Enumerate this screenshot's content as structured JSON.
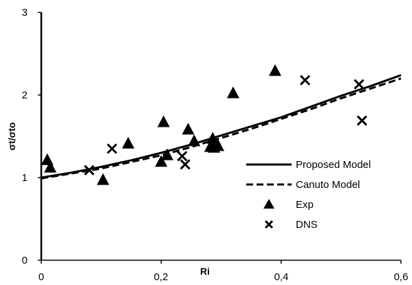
{
  "chart_data": {
    "type": "scatter",
    "xlabel": "Ri",
    "ylabel": "σt/σto",
    "xlim": [
      0,
      0.6
    ],
    "ylim": [
      0,
      3
    ],
    "x_ticks": [
      "0",
      "0,2",
      "0,4",
      "0,6"
    ],
    "y_ticks": [
      "0",
      "1",
      "2",
      "3"
    ],
    "grid": false,
    "legend_position": "right",
    "series": [
      {
        "name": "Proposed Model",
        "style": "solid-line",
        "color": "#000000",
        "points": [
          [
            0,
            1.0
          ],
          [
            0.05,
            1.06
          ],
          [
            0.1,
            1.13
          ],
          [
            0.15,
            1.21
          ],
          [
            0.2,
            1.3
          ],
          [
            0.25,
            1.4
          ],
          [
            0.3,
            1.51
          ],
          [
            0.35,
            1.62
          ],
          [
            0.4,
            1.73
          ],
          [
            0.45,
            1.86
          ],
          [
            0.5,
            1.99
          ],
          [
            0.55,
            2.11
          ],
          [
            0.6,
            2.24
          ]
        ]
      },
      {
        "name": "Canuto Model",
        "style": "dashed-line",
        "color": "#000000",
        "points": [
          [
            0,
            0.99
          ],
          [
            0.05,
            1.05
          ],
          [
            0.1,
            1.11
          ],
          [
            0.15,
            1.19
          ],
          [
            0.2,
            1.27
          ],
          [
            0.25,
            1.37
          ],
          [
            0.3,
            1.48
          ],
          [
            0.35,
            1.59
          ],
          [
            0.4,
            1.71
          ],
          [
            0.45,
            1.83
          ],
          [
            0.5,
            1.96
          ],
          [
            0.55,
            2.08
          ],
          [
            0.6,
            2.2
          ]
        ]
      },
      {
        "name": "Exp",
        "style": "triangle-marker",
        "color": "#000000",
        "points": [
          [
            0.01,
            1.21
          ],
          [
            0.015,
            1.12
          ],
          [
            0.103,
            0.97
          ],
          [
            0.145,
            1.41
          ],
          [
            0.2,
            1.19
          ],
          [
            0.204,
            1.67
          ],
          [
            0.21,
            1.27
          ],
          [
            0.245,
            1.58
          ],
          [
            0.255,
            1.44
          ],
          [
            0.282,
            1.37
          ],
          [
            0.286,
            1.47
          ],
          [
            0.288,
            1.36
          ],
          [
            0.295,
            1.38
          ],
          [
            0.32,
            2.02
          ],
          [
            0.39,
            2.29
          ]
        ]
      },
      {
        "name": "DNS",
        "style": "x-marker",
        "color": "#000000",
        "points": [
          [
            0.08,
            1.09
          ],
          [
            0.118,
            1.35
          ],
          [
            0.235,
            1.26
          ],
          [
            0.24,
            1.16
          ],
          [
            0.44,
            2.18
          ],
          [
            0.53,
            2.13
          ],
          [
            0.535,
            1.69
          ]
        ]
      }
    ]
  }
}
